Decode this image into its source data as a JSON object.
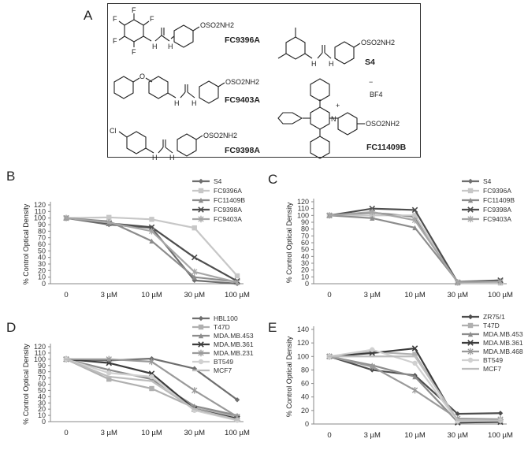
{
  "panel_labels": {
    "a": "A",
    "b": "B",
    "c": "C",
    "d": "D",
    "e": "E"
  },
  "compounds": [
    {
      "name": "FC9396A",
      "substituent": "F"
    },
    {
      "name": "S4"
    },
    {
      "name": "FC9403A",
      "substituent": "O"
    },
    {
      "name": "FC9398A",
      "substituent": "Cl"
    },
    {
      "name": "FC11409B",
      "counterion": "BF4"
    }
  ],
  "chem_labels": {
    "sulfamate": "OSO2NH2",
    "nh": "H",
    "n": "N",
    "o": "O",
    "plus": "+",
    "minus": "−"
  },
  "chart_data": [
    {
      "id": "B",
      "type": "line",
      "title": "",
      "xlabel": "",
      "ylabel": "% Control  Optical Density",
      "categories": [
        "0",
        "3 µM",
        "10 µM",
        "30 µM",
        "100 µM"
      ],
      "ylim": [
        0,
        120
      ],
      "yticks": [
        0,
        10,
        20,
        30,
        40,
        50,
        60,
        70,
        80,
        90,
        100,
        110,
        120
      ],
      "legend": "top-right",
      "grid": false,
      "series": [
        {
          "name": "S4",
          "color": "#6e6e6e",
          "marker": "diamond",
          "values": [
            100,
            90,
            85,
            5,
            0
          ]
        },
        {
          "name": "FC9396A",
          "color": "#c7c7c7",
          "marker": "square",
          "values": [
            100,
            101,
            98,
            85,
            12
          ]
        },
        {
          "name": "FC11409B",
          "color": "#8c8c8c",
          "marker": "triangle",
          "values": [
            100,
            95,
            65,
            10,
            3
          ]
        },
        {
          "name": "FC9398A",
          "color": "#4d4d4d",
          "marker": "x",
          "values": [
            100,
            92,
            86,
            40,
            4
          ]
        },
        {
          "name": "FC9403A",
          "color": "#a6a6a6",
          "marker": "star",
          "values": [
            100,
            93,
            80,
            18,
            2
          ]
        }
      ]
    },
    {
      "id": "C",
      "type": "line",
      "title": "",
      "xlabel": "",
      "ylabel": "% Control Optical Density",
      "categories": [
        "0",
        "3 µM",
        "10 µM",
        "30 µM",
        "100 µM"
      ],
      "ylim": [
        0,
        120
      ],
      "yticks": [
        0,
        10,
        20,
        30,
        40,
        50,
        60,
        70,
        80,
        90,
        100,
        110,
        120
      ],
      "legend": "top-right",
      "grid": false,
      "series": [
        {
          "name": "S4",
          "color": "#6e6e6e",
          "marker": "diamond",
          "values": [
            100,
            104,
            98,
            2,
            2
          ]
        },
        {
          "name": "FC9396A",
          "color": "#c7c7c7",
          "marker": "square",
          "values": [
            100,
            100,
            100,
            1,
            1
          ]
        },
        {
          "name": "FC11409B",
          "color": "#8c8c8c",
          "marker": "triangle",
          "values": [
            100,
            96,
            82,
            3,
            5
          ]
        },
        {
          "name": "FC9398A",
          "color": "#4d4d4d",
          "marker": "x",
          "values": [
            100,
            110,
            108,
            2,
            5
          ]
        },
        {
          "name": "FC9403A",
          "color": "#a6a6a6",
          "marker": "star",
          "values": [
            100,
            105,
            93,
            2,
            3
          ]
        }
      ]
    },
    {
      "id": "D",
      "type": "line",
      "title": "",
      "xlabel": "",
      "ylabel": "% Control Optical Density",
      "categories": [
        "0",
        "3 µM",
        "10 µM",
        "30 µM",
        "100 µM"
      ],
      "ylim": [
        0,
        120
      ],
      "yticks": [
        0,
        10,
        20,
        30,
        40,
        50,
        60,
        70,
        80,
        90,
        100,
        110,
        120
      ],
      "legend": "top-right",
      "grid": false,
      "series": [
        {
          "name": "HBL100",
          "color": "#6e6e6e",
          "marker": "diamond",
          "values": [
            100,
            98,
            101,
            85,
            35
          ]
        },
        {
          "name": "T47D",
          "color": "#b0b0b0",
          "marker": "square",
          "values": [
            100,
            68,
            53,
            22,
            8
          ]
        },
        {
          "name": "MDA.MB.453",
          "color": "#8c8c8c",
          "marker": "triangle",
          "values": [
            100,
            83,
            68,
            25,
            10
          ]
        },
        {
          "name": "MDA.MB.361",
          "color": "#3c3c3c",
          "marker": "x",
          "values": [
            100,
            94,
            77,
            20,
            5
          ]
        },
        {
          "name": "MDA.MB.231",
          "color": "#9a9a9a",
          "marker": "star",
          "values": [
            100,
            100,
            96,
            50,
            8
          ]
        },
        {
          "name": "BT549",
          "color": "#d0d0d0",
          "marker": "circle",
          "values": [
            100,
            78,
            72,
            18,
            2
          ]
        },
        {
          "name": "MCF7",
          "color": "#bdbdbd",
          "marker": "bar",
          "values": [
            100,
            72,
            65,
            20,
            3
          ]
        }
      ]
    },
    {
      "id": "E",
      "type": "line",
      "title": "",
      "xlabel": "",
      "ylabel": "% Control Optical Density",
      "categories": [
        "0",
        "3 µM",
        "10 µM",
        "30 µM",
        "100 µM"
      ],
      "ylim": [
        0,
        140
      ],
      "yticks": [
        0,
        20,
        40,
        60,
        80,
        100,
        120,
        140
      ],
      "legend": "top-right",
      "grid": false,
      "series": [
        {
          "name": "ZR75/1",
          "color": "#4d4d4d",
          "marker": "diamond",
          "values": [
            100,
            80,
            72,
            15,
            16
          ]
        },
        {
          "name": "T47D",
          "color": "#b0b0b0",
          "marker": "square",
          "values": [
            100,
            107,
            103,
            5,
            5
          ]
        },
        {
          "name": "MDA.MB.453",
          "color": "#8c8c8c",
          "marker": "triangle",
          "values": [
            100,
            87,
            70,
            3,
            3
          ]
        },
        {
          "name": "MDA.MB.361",
          "color": "#3c3c3c",
          "marker": "x",
          "values": [
            100,
            105,
            112,
            2,
            3
          ]
        },
        {
          "name": "MDA.MB.468",
          "color": "#9a9a9a",
          "marker": "star",
          "values": [
            100,
            85,
            50,
            8,
            7
          ]
        },
        {
          "name": "BT549",
          "color": "#d0d0d0",
          "marker": "circle",
          "values": [
            100,
            110,
            90,
            4,
            5
          ]
        },
        {
          "name": "MCF7",
          "color": "#bdbdbd",
          "marker": "bar",
          "values": [
            100,
            100,
            100,
            6,
            5
          ]
        }
      ]
    }
  ]
}
